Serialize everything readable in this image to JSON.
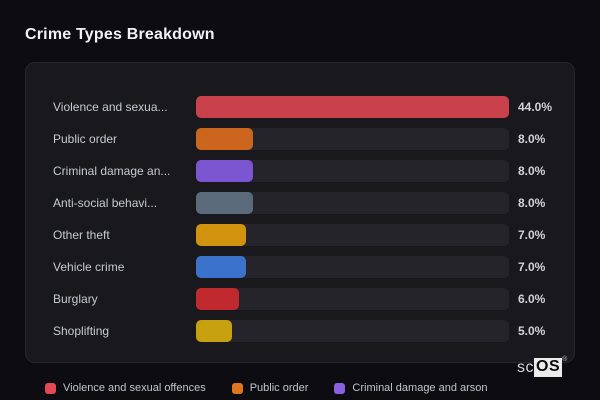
{
  "page": {
    "background": "#0d0d11"
  },
  "header": {
    "title": "Crime Types Breakdown"
  },
  "panel": {
    "background": "#18181d",
    "track_color": "#24242a"
  },
  "chart_data": {
    "type": "bar",
    "orientation": "horizontal",
    "title": "Crime Types Breakdown",
    "value_unit": "%",
    "max_value": 44.0,
    "grid": false,
    "legend_position": "bottom",
    "rows": [
      {
        "label": "Violence and sexua...",
        "value": 44.0,
        "value_label": "44.0%",
        "color": "#c8414b"
      },
      {
        "label": "Public order",
        "value": 8.0,
        "value_label": "8.0%",
        "color": "#cc661f"
      },
      {
        "label": "Criminal damage an...",
        "value": 8.0,
        "value_label": "8.0%",
        "color": "#7c55d1"
      },
      {
        "label": "Anti-social behavi...",
        "value": 8.0,
        "value_label": "8.0%",
        "color": "#5c6b7c"
      },
      {
        "label": "Other theft",
        "value": 7.0,
        "value_label": "7.0%",
        "color": "#d1930d"
      },
      {
        "label": "Vehicle crime",
        "value": 7.0,
        "value_label": "7.0%",
        "color": "#3b73cc"
      },
      {
        "label": "Burglary",
        "value": 6.0,
        "value_label": "6.0%",
        "color": "#c02a2e"
      },
      {
        "label": "Shoplifting",
        "value": 5.0,
        "value_label": "5.0%",
        "color": "#c7a00f"
      }
    ],
    "legend": [
      {
        "label": "Violence and sexual offences",
        "color": "#e04a55"
      },
      {
        "label": "Public order",
        "color": "#e0751f"
      },
      {
        "label": "Criminal damage and arson",
        "color": "#8a5fe0"
      }
    ]
  },
  "watermark": {
    "prefix": "sc",
    "suffix": "OS",
    "registered": "®"
  }
}
